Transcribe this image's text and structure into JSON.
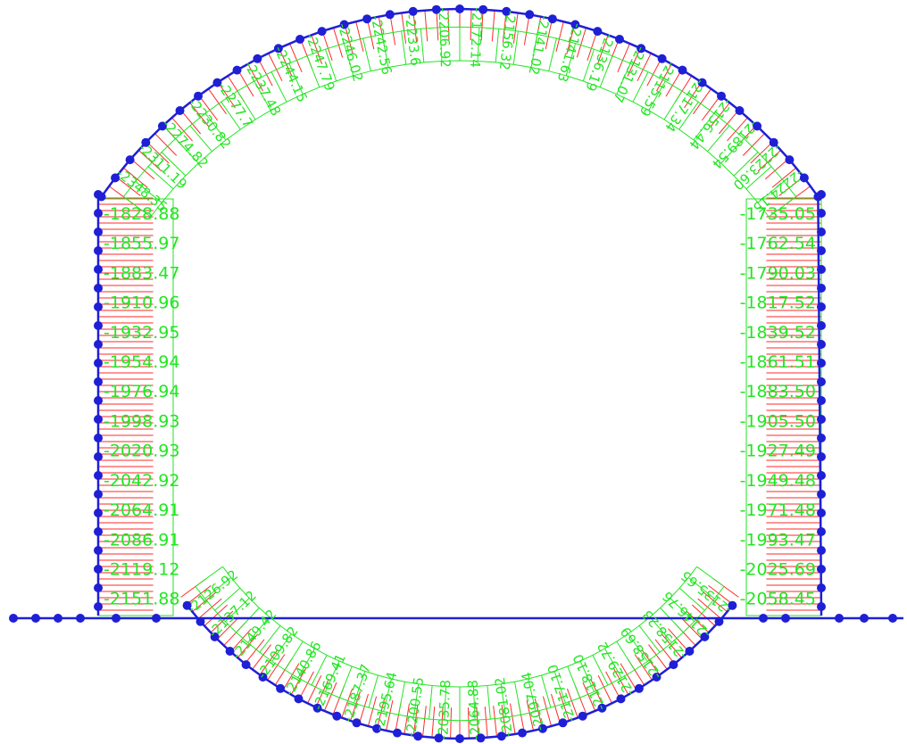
{
  "colors": {
    "member": "#1f1fd6",
    "node": "#1f1fd6",
    "force_hatch": "#ff2a2a",
    "force_label": "#22e622",
    "background": "#ffffff"
  },
  "left_wall_labels": [
    "-1828.88",
    "-1855.97",
    "-1883.47",
    "-1910.96",
    "-1932.95",
    "-1954.94",
    "-1976.94",
    "-1998.93",
    "-2020.93",
    "-2042.92",
    "-2064.91",
    "-2086.91",
    "-2119.12",
    "-2151.88"
  ],
  "right_wall_labels": [
    "-1735.05",
    "-1762.54",
    "-1790.03",
    "-1817.52",
    "-1839.52",
    "-1861.51",
    "-1883.50",
    "-1905.50",
    "-1927.49",
    "-1949.48",
    "-1971.48",
    "-1993.47",
    "-2025.69",
    "-2058.45"
  ],
  "roof_labels": [
    "-2348.35",
    "-2311.19",
    "-2274.82",
    "-2230.82",
    "-2277.7",
    "-2237.48",
    "-2244.15",
    "-2247.79",
    "-2246.02",
    "-2242.56",
    "-2233.6",
    "-2206.92",
    "-2172.14",
    "-2156.32",
    "-2141.02",
    "-2141.63",
    "-2136.19",
    "-2131.07",
    "-2115.59",
    "-2117.34",
    "-2156.44",
    "-2189.54",
    "-2223.60",
    "-2224.15"
  ],
  "invert_labels": [
    "-2126.92",
    "-2137.12",
    "-2149.42",
    "-2109.82",
    "-2140.86",
    "-2169.41",
    "-2187.37",
    "-2195.64",
    "-2200.55",
    "-2035.78",
    "-2064.88",
    "-2081.02",
    "-2097.04",
    "-2117.10",
    "-2118.10",
    "-2129.72",
    "-2158.69",
    "-2158.23",
    "-2146.76",
    "-2135.65"
  ]
}
